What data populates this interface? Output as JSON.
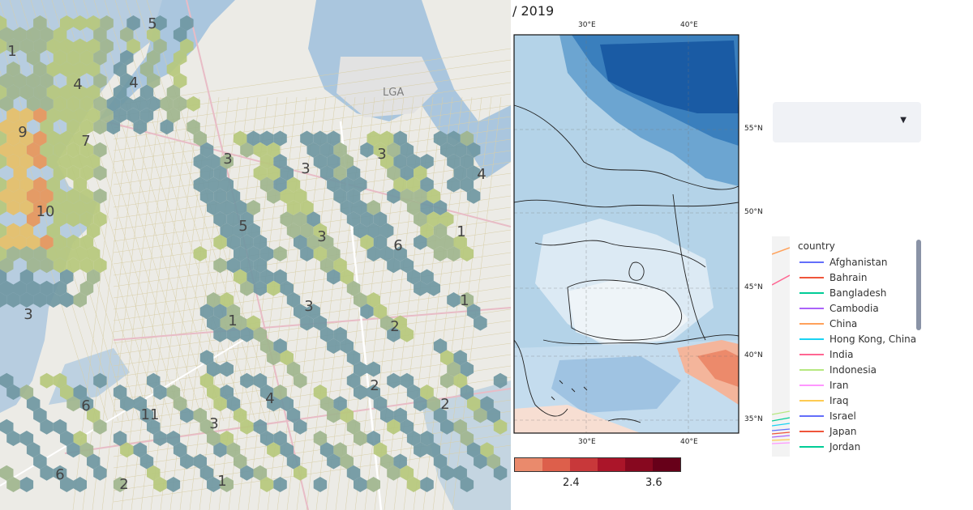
{
  "left_map": {
    "airport_label": "LGA",
    "cluster_labels": [
      "5",
      "1",
      "4",
      "4",
      "9",
      "7",
      "10",
      "3",
      "3",
      "3",
      "4",
      "5",
      "3",
      "6",
      "1",
      "3",
      "1",
      "1",
      "2",
      "3",
      "2",
      "6",
      "11",
      "4",
      "3",
      "2",
      "6",
      "1",
      "2"
    ]
  },
  "climate_map": {
    "title": "/ 2019",
    "lon_ticks_top": [
      "30°E",
      "40°E"
    ],
    "lon_ticks_bottom": [
      "30°E",
      "40°E"
    ],
    "lat_ticks": [
      "55°N",
      "50°N",
      "45°N",
      "40°N",
      "35°N"
    ],
    "colorbar": {
      "colors": [
        "#ea8a6c",
        "#dd5f4b",
        "#c8383a",
        "#ab1529",
        "#87081f",
        "#670019"
      ],
      "ticks": [
        "2.4",
        "3.6"
      ]
    }
  },
  "dropdown": {
    "arrow_icon": "caret-down-icon"
  },
  "legend": {
    "title": "country",
    "items": [
      {
        "label": "Afghanistan",
        "color": "#636efa"
      },
      {
        "label": "Bahrain",
        "color": "#ef553b"
      },
      {
        "label": "Bangladesh",
        "color": "#00cc96"
      },
      {
        "label": "Cambodia",
        "color": "#ab63fa"
      },
      {
        "label": "China",
        "color": "#ffa15a"
      },
      {
        "label": "Hong Kong, China",
        "color": "#19d3f3"
      },
      {
        "label": "India",
        "color": "#ff6692"
      },
      {
        "label": "Indonesia",
        "color": "#b6e880"
      },
      {
        "label": "Iran",
        "color": "#ff97ff"
      },
      {
        "label": "Iraq",
        "color": "#fecb52"
      },
      {
        "label": "Israel",
        "color": "#636efa"
      },
      {
        "label": "Japan",
        "color": "#ef553b"
      },
      {
        "label": "Jordan",
        "color": "#00cc96"
      }
    ]
  }
}
